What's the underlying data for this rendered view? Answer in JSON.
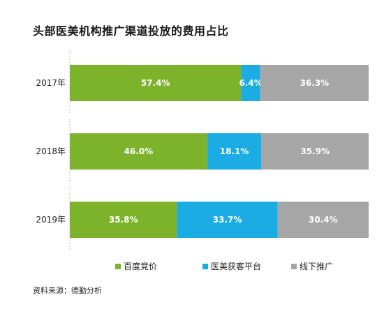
{
  "chart_data": {
    "type": "bar",
    "orientation": "horizontal",
    "stacked": true,
    "percent_stacked": true,
    "title": "头部医美机构推广渠道投放的费用占比",
    "categories": [
      "2017年",
      "2018年",
      "2019年"
    ],
    "series": [
      {
        "name": "百度竞价",
        "color": "#7db32b",
        "values": [
          57.4,
          46.0,
          35.8
        ],
        "labels": [
          "57.4%",
          "46.0%",
          "35.8%"
        ]
      },
      {
        "name": "医美获客平台",
        "color": "#1aace3",
        "values": [
          6.4,
          18.1,
          33.7
        ],
        "labels": [
          "6.4%",
          "18.1%",
          "33.7%"
        ]
      },
      {
        "name": "线下推广",
        "color": "#a6a6a6",
        "values": [
          36.3,
          35.9,
          30.4
        ],
        "labels": [
          "36.3%",
          "35.9%",
          "30.4%"
        ]
      }
    ],
    "legend_position": "bottom",
    "grid": false,
    "source": "资料来源：德勤分析"
  }
}
